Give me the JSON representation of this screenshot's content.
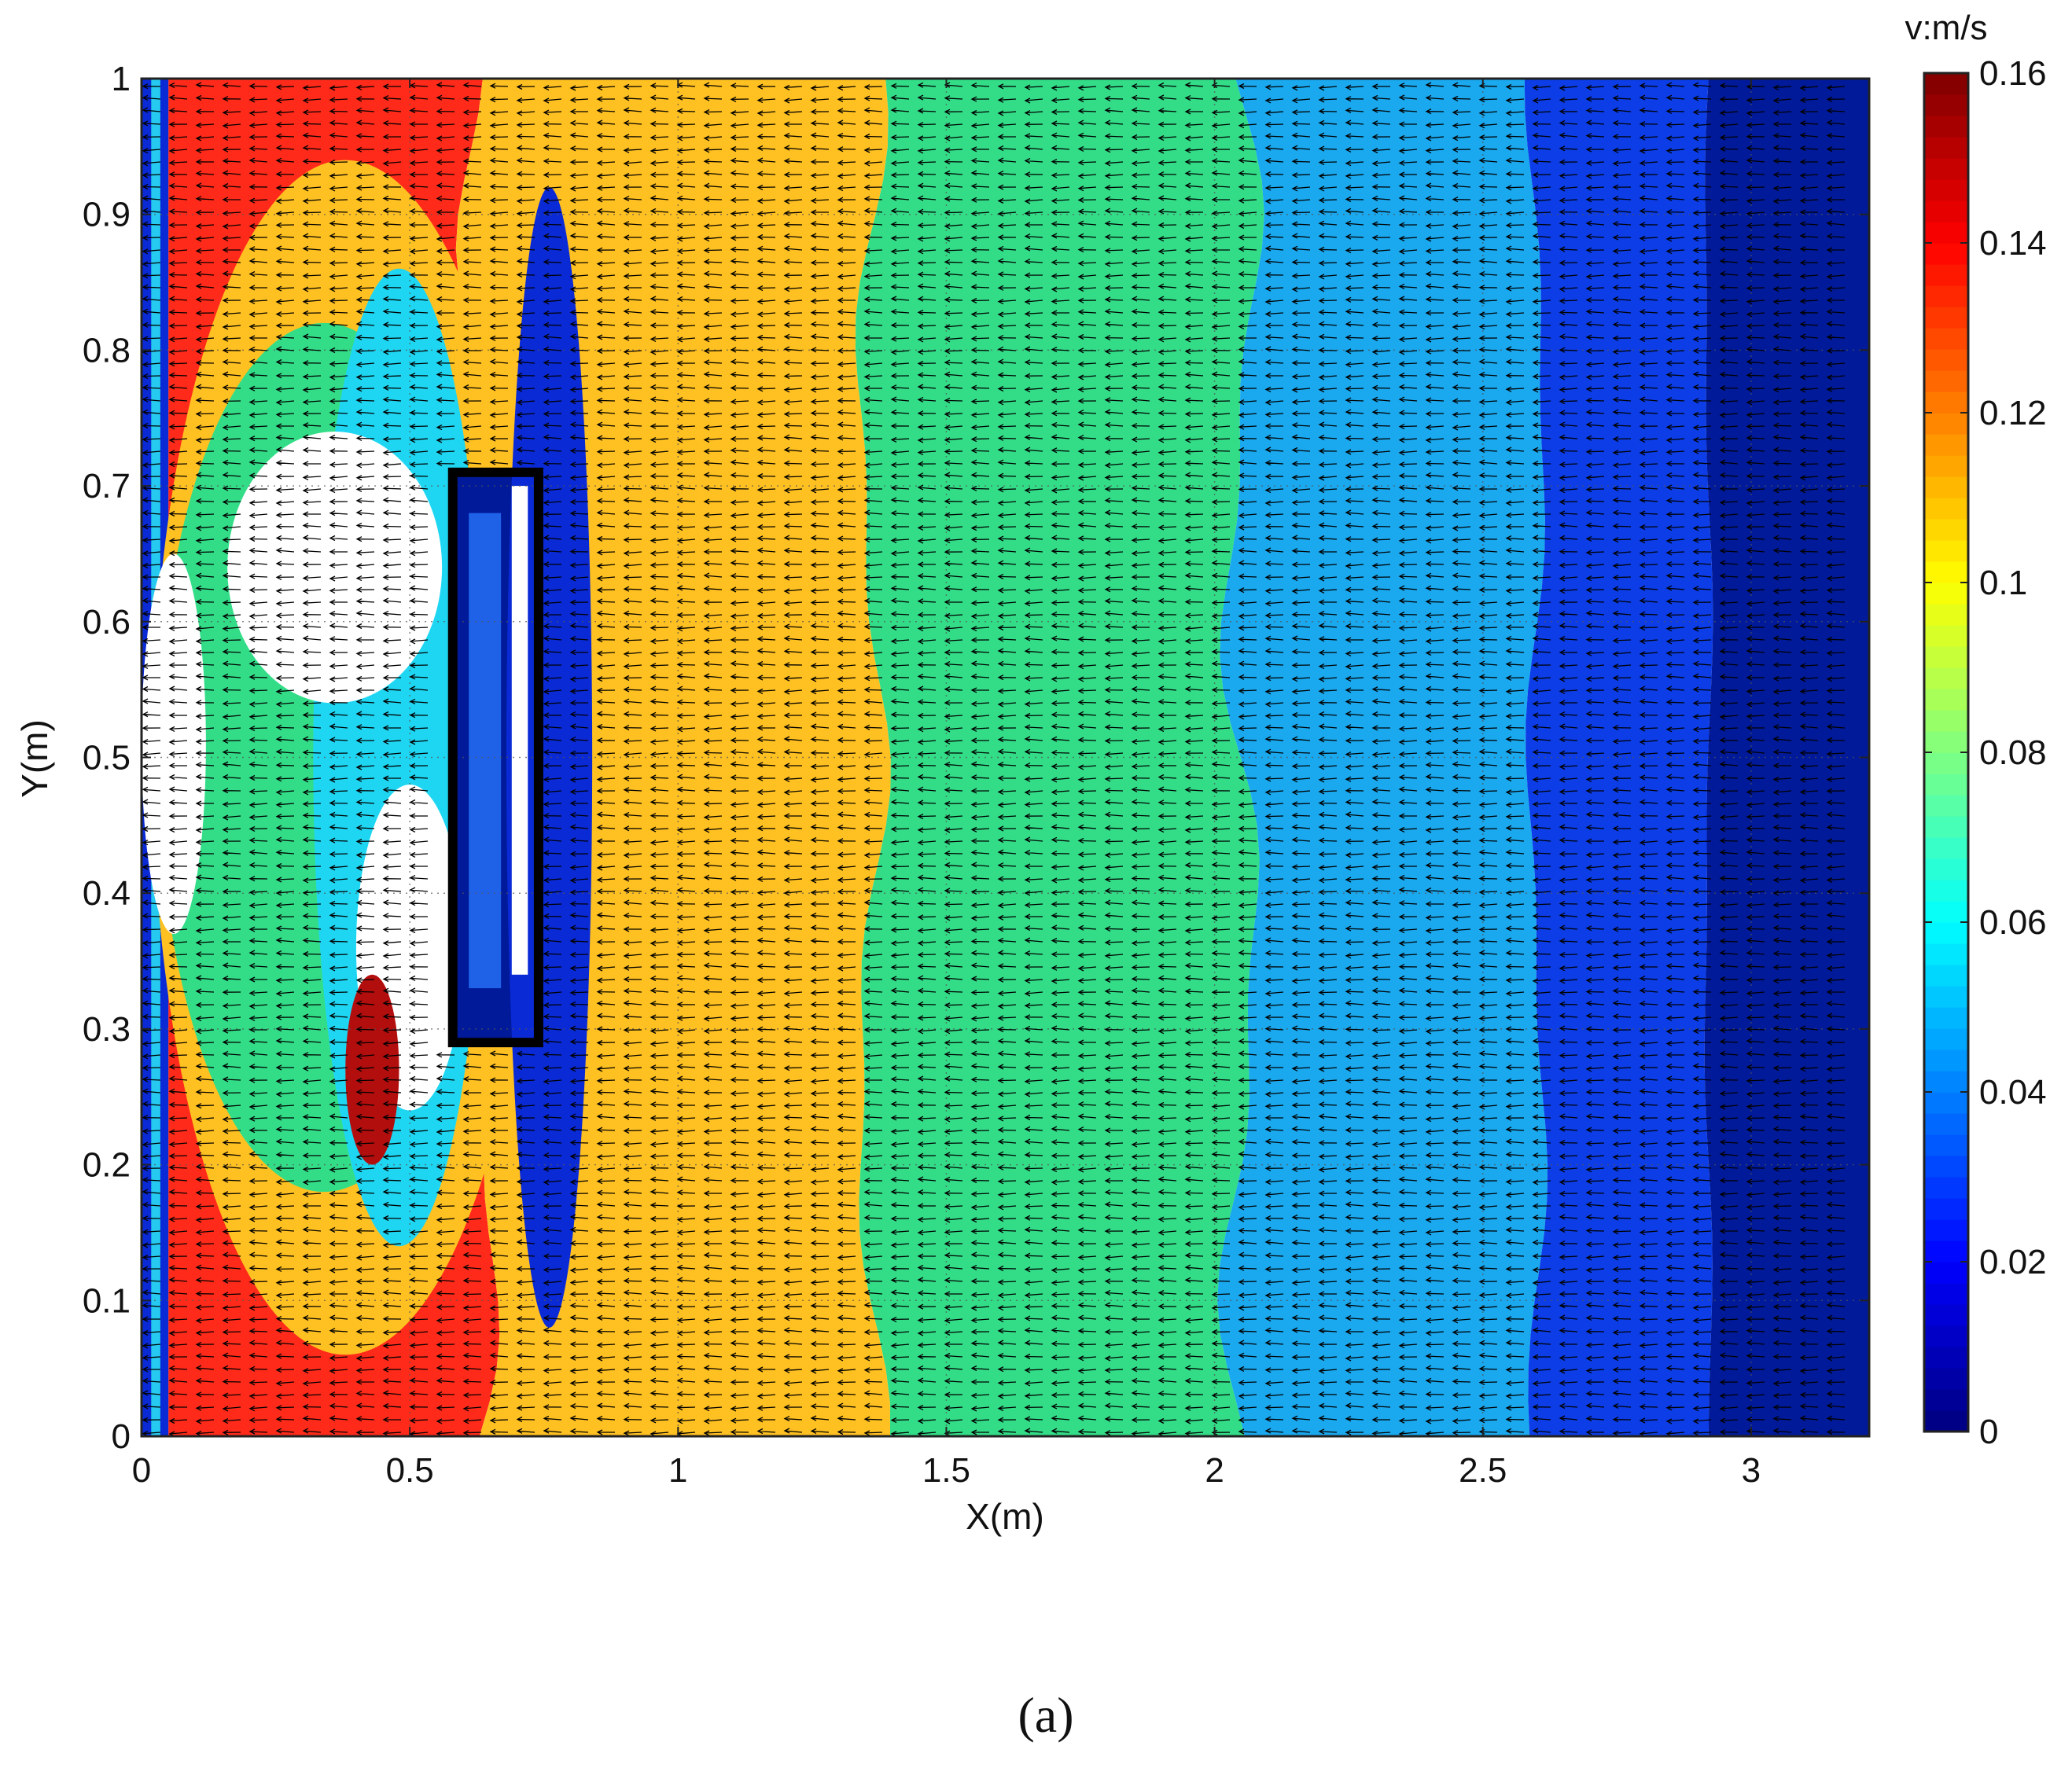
{
  "chart_data": {
    "type": "heatmap",
    "title": "",
    "xlabel": "X(m)",
    "ylabel": "Y(m)",
    "xlim": [
      0,
      3.22
    ],
    "ylim": [
      0,
      1
    ],
    "x_ticks": [
      "0",
      "0.5",
      "1",
      "1.5",
      "2",
      "2.5",
      "3"
    ],
    "x_tick_values": [
      0,
      0.5,
      1,
      1.5,
      2,
      2.5,
      3
    ],
    "y_ticks": [
      "0",
      "0.1",
      "0.2",
      "0.3",
      "0.4",
      "0.5",
      "0.6",
      "0.7",
      "0.8",
      "0.9",
      "1"
    ],
    "y_tick_values": [
      0,
      0.1,
      0.2,
      0.3,
      0.4,
      0.5,
      0.6,
      0.7,
      0.8,
      0.9,
      1
    ],
    "grid": "dotted",
    "quiver": {
      "direction": "negative-x",
      "description": "velocity vectors pointing toward -x"
    },
    "colorbar": {
      "label": "v:m/s",
      "range": [
        0,
        0.16
      ],
      "ticks": [
        "0",
        "0.02",
        "0.04",
        "0.06",
        "0.08",
        "0.1",
        "0.12",
        "0.14",
        "0.16"
      ],
      "tick_values": [
        0,
        0.02,
        0.04,
        0.06,
        0.08,
        0.1,
        0.12,
        0.14,
        0.16
      ],
      "colormap": "jet"
    },
    "velocity_bands": [
      {
        "x_from": 0.05,
        "x_to": 0.63,
        "value": 0.135,
        "color": "#ff2a1a"
      },
      {
        "x_from": 0.63,
        "x_to": 1.36,
        "value": 0.105,
        "color": "#ffc021"
      },
      {
        "x_from": 1.36,
        "x_to": 2.05,
        "value": 0.075,
        "color": "#33dd88"
      },
      {
        "x_from": 2.05,
        "x_to": 2.6,
        "value": 0.045,
        "color": "#1aa8ee"
      },
      {
        "x_from": 2.6,
        "x_to": 2.92,
        "value": 0.018,
        "color": "#0c3de6"
      },
      {
        "x_from": 2.92,
        "x_to": 3.22,
        "value": 0.005,
        "color": "#001a9a"
      }
    ],
    "obstacle": {
      "x": [
        0.58,
        0.74
      ],
      "y": [
        0.29,
        0.71
      ]
    }
  },
  "panel_label": "(a)"
}
